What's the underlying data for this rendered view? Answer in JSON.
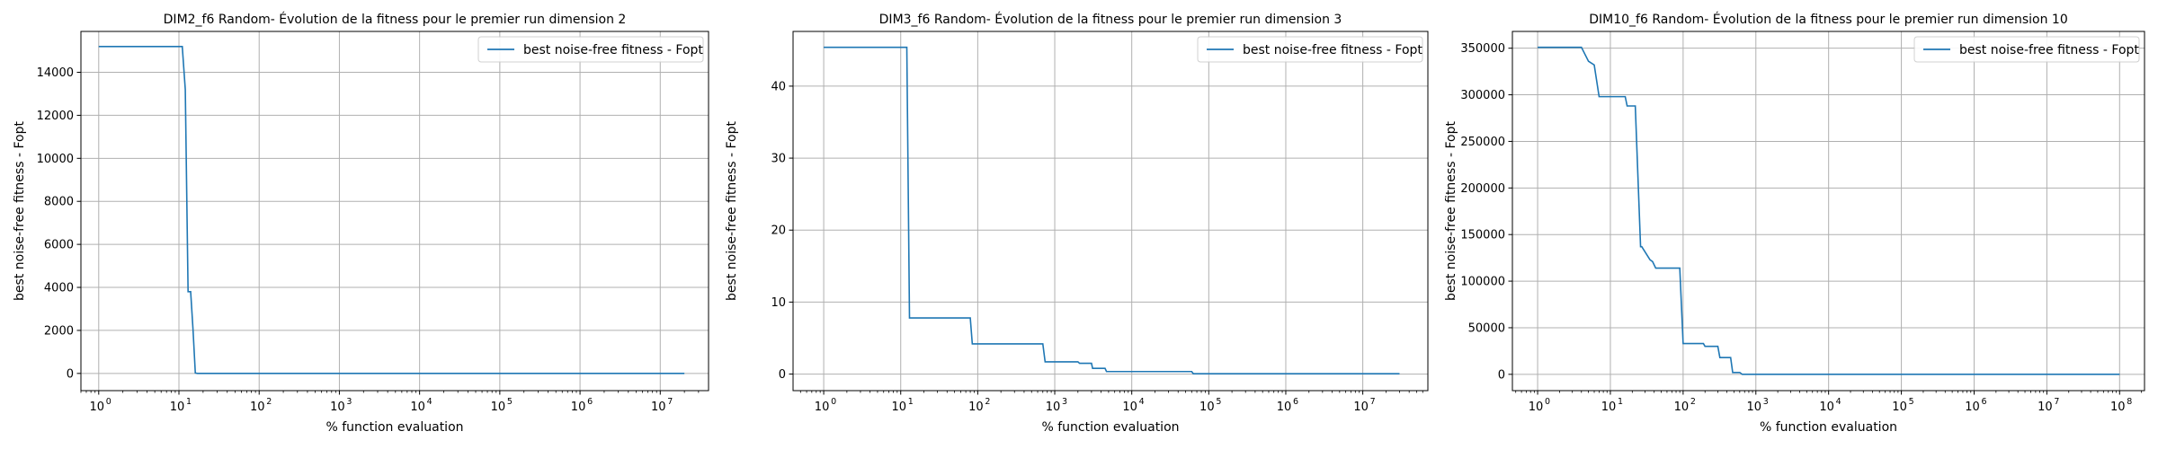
{
  "chart_data": [
    {
      "type": "line",
      "title": "DIM2_f6 Random- Évolution de la fitness pour le premier run dimension 2",
      "xlabel": "% function evaluation",
      "ylabel": "best noise-free fitness - Fopt",
      "xscale": "log",
      "xlim": [
        0.6,
        40000000
      ],
      "ylim": [
        -800,
        15900
      ],
      "xticks": [
        1,
        10,
        100,
        1000,
        10000,
        100000,
        1000000,
        10000000
      ],
      "xtick_labels": [
        {
          "base": "10",
          "exp": "0"
        },
        {
          "base": "10",
          "exp": "1"
        },
        {
          "base": "10",
          "exp": "2"
        },
        {
          "base": "10",
          "exp": "3"
        },
        {
          "base": "10",
          "exp": "4"
        },
        {
          "base": "10",
          "exp": "5"
        },
        {
          "base": "10",
          "exp": "6"
        },
        {
          "base": "10",
          "exp": "7"
        }
      ],
      "yticks": [
        0,
        2000,
        4000,
        6000,
        8000,
        10000,
        12000,
        14000
      ],
      "ytick_labels": [
        "0",
        "2000",
        "4000",
        "6000",
        "8000",
        "10000",
        "12000",
        "14000"
      ],
      "grid": true,
      "legend_placement": "upper right",
      "color": "#1f77b4",
      "series": [
        {
          "name": "best noise-free fitness - Fopt",
          "x": [
            1,
            11,
            12,
            13,
            14,
            15,
            16,
            17,
            20000000
          ],
          "y": [
            15200,
            15200,
            13200,
            3800,
            3800,
            2000,
            20,
            0,
            0
          ]
        }
      ]
    },
    {
      "type": "line",
      "title": "DIM3_f6 Random- Évolution de la fitness pour le premier run dimension 3",
      "xlabel": "% function evaluation",
      "ylabel": "best noise-free fitness - Fopt",
      "xscale": "log",
      "xlim": [
        0.4,
        70000000
      ],
      "ylim": [
        -2.3,
        47.6
      ],
      "xticks": [
        1,
        10,
        100,
        1000,
        10000,
        100000,
        1000000,
        10000000
      ],
      "xtick_labels": [
        {
          "base": "10",
          "exp": "0"
        },
        {
          "base": "10",
          "exp": "1"
        },
        {
          "base": "10",
          "exp": "2"
        },
        {
          "base": "10",
          "exp": "3"
        },
        {
          "base": "10",
          "exp": "4"
        },
        {
          "base": "10",
          "exp": "5"
        },
        {
          "base": "10",
          "exp": "6"
        },
        {
          "base": "10",
          "exp": "7"
        }
      ],
      "yticks": [
        0,
        10,
        20,
        30,
        40
      ],
      "ytick_labels": [
        "0",
        "10",
        "20",
        "30",
        "40"
      ],
      "grid": true,
      "legend_placement": "upper right",
      "color": "#1f77b4",
      "series": [
        {
          "name": "best noise-free fitness - Fopt",
          "x": [
            1,
            12,
            13,
            80,
            85,
            700,
            750,
            2000,
            2100,
            3000,
            3100,
            4500,
            4700,
            60000,
            63000,
            30000000
          ],
          "y": [
            45.4,
            45.4,
            7.8,
            7.8,
            4.2,
            4.2,
            1.7,
            1.7,
            1.5,
            1.5,
            0.8,
            0.8,
            0.35,
            0.35,
            0.05,
            0.05
          ]
        }
      ]
    },
    {
      "type": "line",
      "title": "DIM10_f6 Random- Évolution de la fitness pour le premier run dimension 10",
      "xlabel": "% function evaluation",
      "ylabel": "best noise-free fitness - Fopt",
      "xscale": "log",
      "xlim": [
        0.45,
        220000000
      ],
      "ylim": [
        -17500,
        368000
      ],
      "xticks": [
        1,
        10,
        100,
        1000,
        10000,
        100000,
        1000000,
        10000000,
        100000000
      ],
      "xtick_labels": [
        {
          "base": "10",
          "exp": "0"
        },
        {
          "base": "10",
          "exp": "1"
        },
        {
          "base": "10",
          "exp": "2"
        },
        {
          "base": "10",
          "exp": "3"
        },
        {
          "base": "10",
          "exp": "4"
        },
        {
          "base": "10",
          "exp": "5"
        },
        {
          "base": "10",
          "exp": "6"
        },
        {
          "base": "10",
          "exp": "7"
        },
        {
          "base": "10",
          "exp": "8"
        }
      ],
      "yticks": [
        0,
        50000,
        100000,
        150000,
        200000,
        250000,
        300000,
        350000
      ],
      "ytick_labels": [
        "0",
        "50000",
        "100000",
        "150000",
        "200000",
        "250000",
        "300000",
        "350000"
      ],
      "grid": true,
      "legend_placement": "upper right",
      "color": "#1f77b4",
      "series": [
        {
          "name": "best noise-free fitness - Fopt",
          "x": [
            1,
            4,
            5,
            6,
            7,
            16,
            17,
            21,
            22,
            26,
            27,
            35,
            38,
            42,
            45,
            90,
            100,
            110,
            190,
            200,
            300,
            320,
            450,
            480,
            600,
            650,
            100000000
          ],
          "y": [
            351000,
            351000,
            336000,
            332000,
            298000,
            298000,
            288000,
            288000,
            288000,
            137000,
            137000,
            123000,
            121000,
            114000,
            114000,
            114000,
            33000,
            33000,
            33000,
            30000,
            30000,
            18000,
            18000,
            2000,
            2000,
            0,
            0
          ]
        }
      ]
    }
  ]
}
